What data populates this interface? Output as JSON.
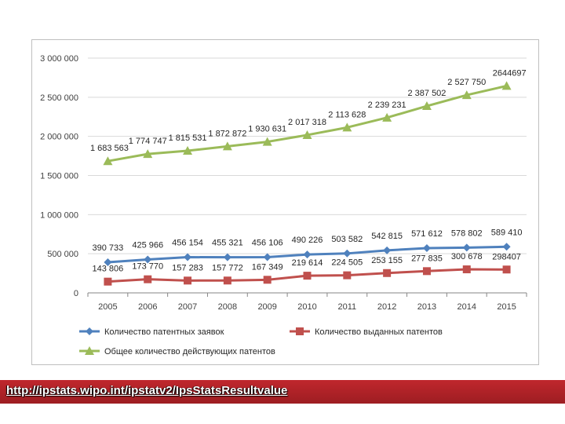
{
  "colors": {
    "blue": "#4f81bd",
    "red": "#c0504d",
    "green": "#9bbb59",
    "axis": "#868686",
    "banner": "#c0272d"
  },
  "source_url": "http://ipstats.wipo.int/ipstatv2/IpsStatsResultvalue",
  "chart_data": {
    "type": "line",
    "categories": [
      "2005",
      "2006",
      "2007",
      "2008",
      "2009",
      "2010",
      "2011",
      "2012",
      "2013",
      "2014",
      "2015"
    ],
    "ylim": [
      0,
      3000000
    ],
    "y_ticks": [
      {
        "value": 0,
        "label": "0"
      },
      {
        "value": 500000,
        "label": "500 000"
      },
      {
        "value": 1000000,
        "label": "1 000 000"
      },
      {
        "value": 1500000,
        "label": "1 500 000"
      },
      {
        "value": 2000000,
        "label": "2 000 000"
      },
      {
        "value": 2500000,
        "label": "2 500 000"
      },
      {
        "value": 3000000,
        "label": "3 000 000"
      }
    ],
    "grid": "horizontal",
    "legend_position": "bottom",
    "series": [
      {
        "name": "Количество патентных заявок",
        "color": "#4f81bd",
        "marker": "diamond",
        "values": [
          390733,
          425966,
          456154,
          455321,
          456106,
          490226,
          503582,
          542815,
          571612,
          578802,
          589410
        ],
        "labels": [
          "390 733",
          "425 966",
          "456 154",
          "455 321",
          "456 106",
          "490 226",
          "503 582",
          "542 815",
          "571 612",
          "578 802",
          "589 410"
        ]
      },
      {
        "name": "Количество выданных патентов",
        "color": "#c0504d",
        "marker": "square",
        "values": [
          143806,
          173770,
          157283,
          157772,
          167349,
          219614,
          224505,
          253155,
          277835,
          300678,
          298407
        ],
        "labels": [
          "143 806",
          "173 770",
          "157 283",
          "157 772",
          "167 349",
          "219 614",
          "224 505",
          "253 155",
          "277 835",
          "300 678",
          "298407"
        ]
      },
      {
        "name": "Общее количество действующих патентов",
        "color": "#9bbb59",
        "marker": "triangle",
        "values": [
          1683563,
          1774747,
          1815531,
          1872872,
          1930631,
          2017318,
          2113628,
          2239231,
          2387502,
          2527750,
          2644697
        ],
        "labels": [
          "1 683 563",
          "1 774 747",
          "1 815 531",
          "1 872 872",
          "1 930 631",
          "2 017 318",
          "2 113 628",
          "2 239 231",
          "2 387 502",
          "2 527 750",
          "2644697"
        ]
      }
    ]
  }
}
